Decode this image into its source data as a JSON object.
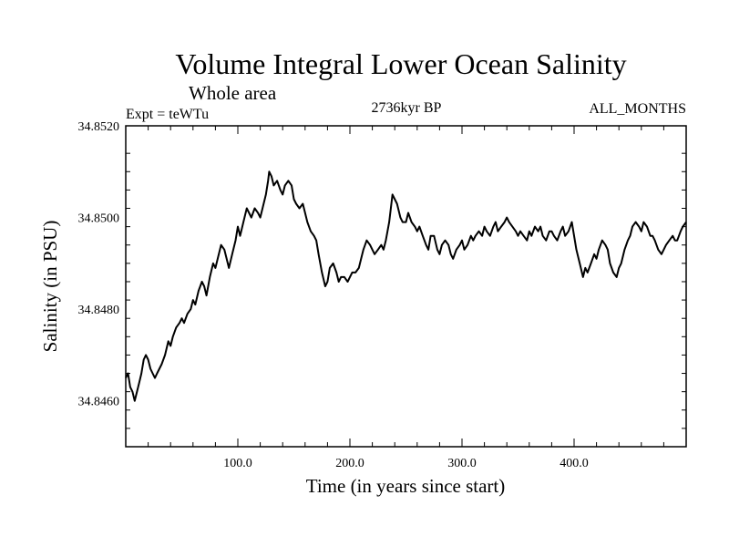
{
  "chart_data": {
    "type": "line",
    "title": "Volume Integral Lower Ocean Salinity",
    "subtitle": "Whole area",
    "left_label": "Expt = teWTu",
    "center_label": "2736kyr BP",
    "right_label": "ALL_MONTHS",
    "xlabel": "Time (in years since start)",
    "ylabel": "Salinity (in PSU)",
    "xlim": [
      0,
      500
    ],
    "ylim": [
      34.845,
      34.852
    ],
    "x_ticks": [
      100,
      200,
      300,
      400
    ],
    "x_tick_labels": [
      "100.0",
      "200.0",
      "300.0",
      "400.0"
    ],
    "y_ticks": [
      34.846,
      34.848,
      34.85,
      34.852
    ],
    "y_tick_labels": [
      "34.8460",
      "34.8480",
      "34.8500",
      "34.8520"
    ],
    "series": [
      {
        "name": "salinity",
        "color": "#000000",
        "x": [
          0,
          2,
          4,
          6,
          8,
          10,
          12,
          14,
          16,
          18,
          20,
          22,
          24,
          26,
          28,
          30,
          32,
          35,
          38,
          40,
          42,
          45,
          48,
          50,
          52,
          55,
          58,
          60,
          62,
          65,
          68,
          70,
          72,
          75,
          78,
          80,
          82,
          85,
          88,
          90,
          92,
          95,
          98,
          100,
          102,
          105,
          108,
          110,
          112,
          115,
          118,
          120,
          122,
          125,
          127,
          128,
          130,
          132,
          135,
          138,
          140,
          142,
          145,
          148,
          150,
          152,
          155,
          158,
          160,
          162,
          165,
          168,
          170,
          172,
          175,
          178,
          180,
          182,
          185,
          188,
          190,
          192,
          195,
          198,
          200,
          202,
          205,
          208,
          210,
          212,
          215,
          218,
          220,
          222,
          225,
          228,
          230,
          232,
          235,
          238,
          240,
          242,
          245,
          247,
          250,
          252,
          255,
          258,
          260,
          262,
          265,
          268,
          270,
          272,
          275,
          278,
          280,
          282,
          285,
          288,
          290,
          292,
          295,
          298,
          300,
          302,
          305,
          308,
          310,
          312,
          315,
          318,
          320,
          322,
          325,
          328,
          330,
          332,
          335,
          338,
          340,
          342,
          345,
          348,
          350,
          352,
          355,
          358,
          360,
          362,
          365,
          368,
          370,
          372,
          375,
          378,
          380,
          382,
          385,
          388,
          390,
          392,
          395,
          398,
          400,
          402,
          405,
          408,
          410,
          412,
          415,
          418,
          420,
          422,
          425,
          428,
          430,
          432,
          435,
          438,
          440,
          442,
          445,
          448,
          450,
          452,
          455,
          458,
          460,
          462,
          465,
          468,
          470,
          472,
          475,
          478,
          480,
          482,
          485,
          488,
          490,
          492,
          495,
          497,
          500
        ],
        "y": [
          34.8465,
          34.8466,
          34.8463,
          34.8462,
          34.846,
          34.8462,
          34.8464,
          34.8466,
          34.8469,
          34.847,
          34.8469,
          34.8467,
          34.8466,
          34.8465,
          34.8466,
          34.8467,
          34.8468,
          34.847,
          34.8473,
          34.8472,
          34.8474,
          34.8476,
          34.8477,
          34.8478,
          34.8477,
          34.8479,
          34.848,
          34.8482,
          34.8481,
          34.8484,
          34.8486,
          34.8485,
          34.8483,
          34.8487,
          34.849,
          34.8489,
          34.8491,
          34.8494,
          34.8493,
          34.8491,
          34.8489,
          34.8492,
          34.8495,
          34.8498,
          34.8496,
          34.8499,
          34.8502,
          34.8501,
          34.85,
          34.8502,
          34.8501,
          34.85,
          34.8502,
          34.8505,
          34.8508,
          34.851,
          34.8509,
          34.8507,
          34.8508,
          34.8506,
          34.8505,
          34.8507,
          34.8508,
          34.8507,
          34.8504,
          34.8503,
          34.8502,
          34.8503,
          34.8501,
          34.8499,
          34.8497,
          34.8496,
          34.8495,
          34.8492,
          34.8488,
          34.8485,
          34.8486,
          34.8489,
          34.849,
          34.8488,
          34.8486,
          34.8487,
          34.8487,
          34.8486,
          34.8487,
          34.8488,
          34.8488,
          34.8489,
          34.8491,
          34.8493,
          34.8495,
          34.8494,
          34.8493,
          34.8492,
          34.8493,
          34.8494,
          34.8493,
          34.8495,
          34.8499,
          34.8505,
          34.8504,
          34.8503,
          34.85,
          34.8499,
          34.8499,
          34.8501,
          34.8499,
          34.8498,
          34.8497,
          34.8498,
          34.8496,
          34.8494,
          34.8493,
          34.8496,
          34.8496,
          34.8493,
          34.8492,
          34.8494,
          34.8495,
          34.8494,
          34.8492,
          34.8491,
          34.8493,
          34.8494,
          34.8495,
          34.8493,
          34.8494,
          34.8496,
          34.8495,
          34.8496,
          34.8497,
          34.8496,
          34.8498,
          34.8497,
          34.8496,
          34.8498,
          34.8499,
          34.8497,
          34.8498,
          34.8499,
          34.85,
          34.8499,
          34.8498,
          34.8497,
          34.8496,
          34.8497,
          34.8496,
          34.8495,
          34.8497,
          34.8496,
          34.8498,
          34.8497,
          34.8498,
          34.8496,
          34.8495,
          34.8497,
          34.8497,
          34.8496,
          34.8495,
          34.8497,
          34.8498,
          34.8496,
          34.8497,
          34.8499,
          34.8496,
          34.8493,
          34.849,
          34.8487,
          34.8489,
          34.8488,
          34.849,
          34.8492,
          34.8491,
          34.8493,
          34.8495,
          34.8494,
          34.8493,
          34.849,
          34.8488,
          34.8487,
          34.8489,
          34.849,
          34.8493,
          34.8495,
          34.8496,
          34.8498,
          34.8499,
          34.8498,
          34.8497,
          34.8499,
          34.8498,
          34.8496,
          34.8496,
          34.8495,
          34.8493,
          34.8492,
          34.8493,
          34.8494,
          34.8495,
          34.8496,
          34.8495,
          34.8495,
          34.8497,
          34.8498,
          34.8499
        ]
      }
    ]
  }
}
